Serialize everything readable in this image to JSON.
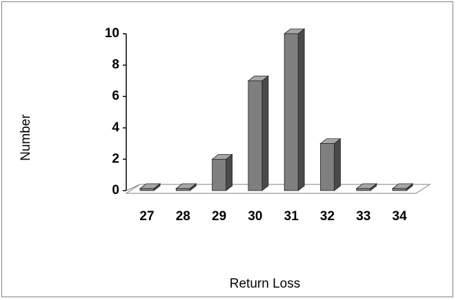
{
  "chart_data": {
    "type": "bar",
    "title": "",
    "xlabel": "Return Loss",
    "ylabel": "Number",
    "categories": [
      "27",
      "28",
      "29",
      "30",
      "31",
      "32",
      "33",
      "34"
    ],
    "values": [
      0,
      0,
      2,
      7,
      10,
      3,
      0,
      0
    ],
    "ylim": [
      0,
      10
    ],
    "yticks": [
      "0",
      "2",
      "4",
      "6",
      "8",
      "10"
    ],
    "grid": false,
    "legend": "none",
    "three_d": true,
    "colors": {
      "bar_front": "#7f7f7f",
      "bar_side": "#4a4a4a",
      "bar_top": "#a6a6a6",
      "axis": "#000000",
      "floor": "#808080"
    }
  }
}
